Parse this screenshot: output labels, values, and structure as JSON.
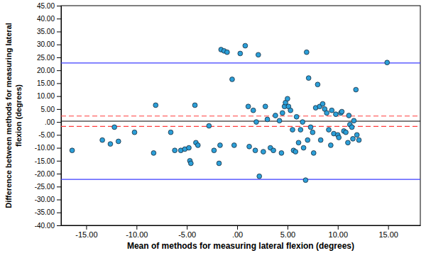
{
  "chart_data": {
    "type": "scatter",
    "x_label": "Mean of methods for measuring lateral flexion (degrees)",
    "y_label": "Difference between methods for measuring lateral flexion (degrees)",
    "color": "#2b9fd8",
    "marker": "circle",
    "xlim": [
      -17.5,
      18.2
    ],
    "ylim": [
      -40,
      45
    ],
    "xticks": [
      {
        "value": -15,
        "label": "-15.00"
      },
      {
        "value": -10,
        "label": "-10.00"
      },
      {
        "value": -5,
        "label": "-5.00"
      },
      {
        "value": 0,
        "label": ".00"
      },
      {
        "value": 5,
        "label": "5.00"
      },
      {
        "value": 10,
        "label": "10.00"
      },
      {
        "value": 15,
        "label": "15.00"
      }
    ],
    "yticks": [
      {
        "value": -40,
        "label": "-40.00"
      },
      {
        "value": -35,
        "label": "-35.00"
      },
      {
        "value": -30,
        "label": "-30.00"
      },
      {
        "value": -25,
        "label": "-25.00"
      },
      {
        "value": -20,
        "label": "-20.00"
      },
      {
        "value": -15,
        "label": "-15.00"
      },
      {
        "value": -10,
        "label": "-10.00"
      },
      {
        "value": -5,
        "label": "-5.00"
      },
      {
        "value": 0,
        "label": ".00"
      },
      {
        "value": 5,
        "label": "5.00"
      },
      {
        "value": 10,
        "label": "10.00"
      },
      {
        "value": 15,
        "label": "15.00"
      },
      {
        "value": 20,
        "label": "20.00"
      },
      {
        "value": 25,
        "label": "25.00"
      },
      {
        "value": 30,
        "label": "30.00"
      },
      {
        "value": 35,
        "label": "35.00"
      },
      {
        "value": 40,
        "label": "40.00"
      },
      {
        "value": 45,
        "label": "45.00"
      }
    ],
    "reference_lines": [
      {
        "value": 22.8,
        "color": "#3c3cff",
        "line_style": "solid"
      },
      {
        "value": -22.2,
        "color": "#3c3cff",
        "line_style": "solid"
      },
      {
        "value": 0.3,
        "color": "#000000",
        "line_style": "solid"
      },
      {
        "value": 2.3,
        "color": "#ff3c3c",
        "line_style": "dashed"
      },
      {
        "value": -1.7,
        "color": "#ff3c3c",
        "line_style": "dashed"
      }
    ],
    "x": [
      -16.4,
      -13.4,
      -12.6,
      -12.2,
      -11.8,
      -10.2,
      -8.3,
      -8.1,
      -6.6,
      -6.2,
      -5.6,
      -5.2,
      -4.8,
      -4.7,
      -4.6,
      -4.2,
      -4.1,
      -3.9,
      -2.8,
      -2.3,
      -1.8,
      -1.7,
      -1.6,
      -1.3,
      -1.0,
      -0.5,
      -0.3,
      0.3,
      0.8,
      1.1,
      1.2,
      1.6,
      1.8,
      1.9,
      2.1,
      2.2,
      2.6,
      2.8,
      3.0,
      3.3,
      3.6,
      3.8,
      4.2,
      4.4,
      4.5,
      4.7,
      4.8,
      5.0,
      5.1,
      5.3,
      5.5,
      5.6,
      5.8,
      5.9,
      6.1,
      6.3,
      6.5,
      6.6,
      6.8,
      6.9,
      7.0,
      7.1,
      7.3,
      7.5,
      7.6,
      7.8,
      8.0,
      8.2,
      8.3,
      8.5,
      8.7,
      8.9,
      9.1,
      9.3,
      9.4,
      9.6,
      9.8,
      10.0,
      10.1,
      10.3,
      10.4,
      10.6,
      10.8,
      11.0,
      11.1,
      11.2,
      11.4,
      11.5,
      11.6,
      11.8,
      11.9,
      12.1,
      14.9
    ],
    "values": [
      -11,
      -7,
      -8.5,
      -2,
      -7.5,
      -4,
      -12,
      6.5,
      -4,
      -11,
      -11,
      -10.5,
      -10,
      -15,
      -16,
      6.5,
      -8,
      -9,
      -1.5,
      -11,
      -16,
      -9,
      28,
      27.5,
      27,
      16.5,
      -9,
      26.5,
      29.5,
      6,
      -9.5,
      4.5,
      -11,
      0,
      26,
      -21,
      -11.5,
      6,
      1,
      -10,
      -11,
      2.5,
      0.5,
      -12,
      3.5,
      6,
      7.5,
      9,
      6,
      4.5,
      -3,
      -11,
      -11.5,
      2,
      -8,
      -3,
      0,
      -10,
      -22.5,
      27,
      -7,
      17,
      -2,
      -4,
      -12,
      5.5,
      14.5,
      6,
      -7,
      7,
      5,
      3.5,
      -3,
      -9,
      4.5,
      -4.5,
      3,
      -5,
      -6,
      3.5,
      4,
      -3.5,
      -4,
      -8,
      2.5,
      -1,
      -2,
      -6.5,
      0.5,
      12.5,
      -5,
      -7,
      23
    ]
  }
}
